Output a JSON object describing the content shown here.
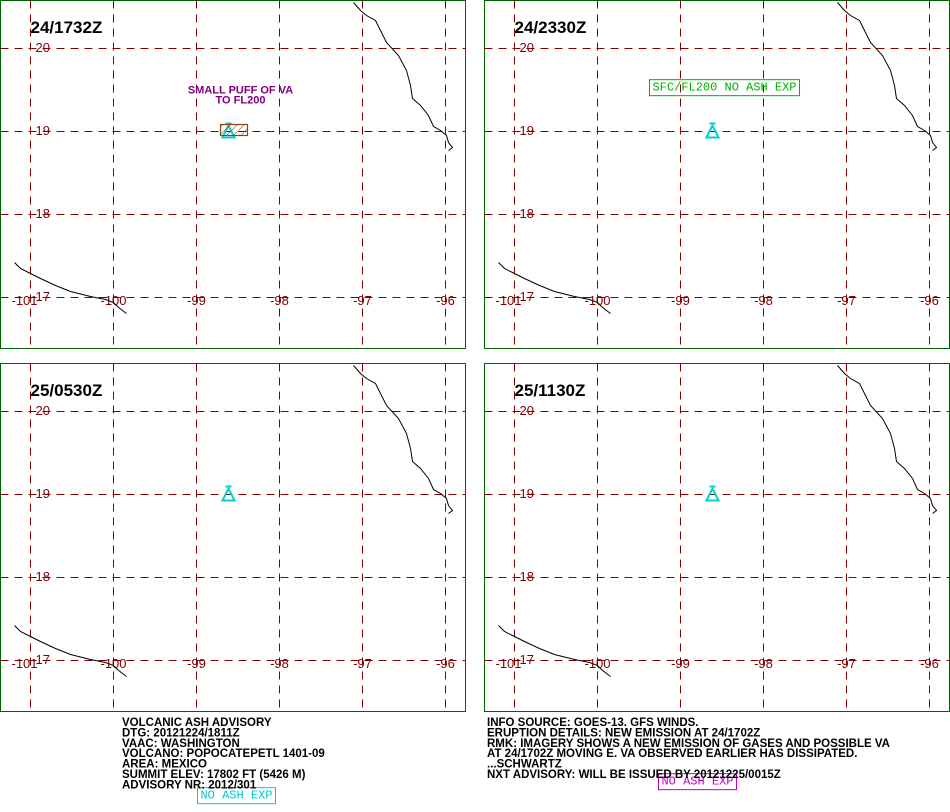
{
  "panels": [
    {
      "time": "24/1732Z",
      "annotation": [
        "SMALL PUFF OF VA",
        "TO FL200"
      ],
      "color": "#800080",
      "boxed": false
    },
    {
      "time": "24/2330Z",
      "annotation": [
        "SFC/FL200 NO ASH EXP"
      ],
      "color": "#00b000",
      "boxed": true
    },
    {
      "time": "25/0530Z",
      "annotation": [
        "NO ASH EXP"
      ],
      "color": "#00c8c8",
      "boxed": true
    },
    {
      "time": "25/1130Z",
      "annotation": [
        "NO ASH EXP"
      ],
      "color": "#c000c0",
      "boxed": true
    }
  ],
  "lat_ticks": [
    20,
    19,
    18,
    17
  ],
  "lon_ticks": [
    -101,
    -100,
    -99,
    -98,
    -97,
    -96
  ],
  "footer": {
    "left": [
      "VOLCANIC ASH ADVISORY",
      "DTG: 20121224/1811Z",
      "VAAC: WASHINGTON",
      "VOLCANO: POPOCATEPETL 1401-09",
      "AREA: MEXICO",
      "SUMMIT ELEV: 17802 FT (5426 M)",
      "ADVISORY NR: 2012/301"
    ],
    "right": [
      "INFO SOURCE: GOES-13. GFS WINDS.",
      "ERUPTION DETAILS: NEW EMISSION AT 24/1702Z",
      "RMK: IMAGERY SHOWS A NEW EMISSION OF GASES AND POSSIBLE VA",
      "AT 24/1702Z MOVING E. VA OBSERVED EARLIER HAS DISSIPATED.",
      "...SCHWARTZ",
      "NXT ADVISORY: WILL BE ISSUED BY 20121225/0015Z"
    ]
  }
}
